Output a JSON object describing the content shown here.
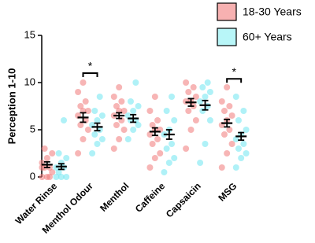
{
  "chart_data": {
    "type": "dotplot",
    "y_label": "Perception 1-10",
    "categories": [
      "Water Rinse",
      "Menthol Odour",
      "Menthol",
      "Caffeine",
      "Capsaicin",
      "MSG"
    ],
    "ylim": [
      0,
      15
    ],
    "yticks": [
      0,
      5,
      10,
      15
    ],
    "series": [
      {
        "name": "18-30 Years",
        "color": "#f07878",
        "legend_color": "#f7b1b1",
        "values": [
          1.3,
          6.3,
          6.5,
          4.8,
          7.9,
          5.7
        ],
        "errors": [
          0.3,
          0.5,
          0.3,
          0.4,
          0.4,
          0.4
        ],
        "points": [
          [
            0,
            0,
            0.5,
            1,
            1,
            1.5,
            2,
            2.5,
            3,
            0,
            1
          ],
          [
            2.5,
            4,
            5,
            5.5,
            6,
            6.5,
            7,
            7,
            7.5,
            8,
            9,
            10
          ],
          [
            3,
            4,
            5,
            5.5,
            6,
            6.5,
            7,
            7,
            7.5,
            8,
            8.5,
            9.5
          ],
          [
            1,
            2,
            2.5,
            3.5,
            4,
            4.5,
            5,
            5,
            5.5,
            6,
            7,
            8.5
          ],
          [
            3,
            5,
            6,
            7,
            7.5,
            8,
            8,
            8.5,
            9,
            9.5,
            10
          ],
          [
            1,
            2.5,
            3.5,
            4.5,
            5,
            5.5,
            6,
            6.5,
            7,
            7.5,
            8,
            9.5
          ]
        ]
      },
      {
        "name": "60+ Years",
        "color": "#6ee6f0",
        "legend_color": "#b8f6f8",
        "values": [
          1.1,
          5.3,
          6.2,
          4.5,
          7.6,
          4.3
        ],
        "errors": [
          0.3,
          0.4,
          0.4,
          0.5,
          0.5,
          0.4
        ],
        "points": [
          [
            0,
            0,
            0,
            0.5,
            1,
            1,
            1.5,
            2,
            2.5,
            6
          ],
          [
            2.5,
            3.5,
            4,
            4.5,
            5,
            5.5,
            6,
            6.5,
            7,
            8.5
          ],
          [
            4,
            5,
            5.5,
            6,
            6,
            6.5,
            7,
            7.5,
            8,
            10
          ],
          [
            0.5,
            1.5,
            2,
            3,
            3.5,
            4.5,
            5,
            6,
            7,
            8.5
          ],
          [
            1.5,
            3.5,
            6,
            7,
            7.5,
            8,
            8.5,
            9,
            9.5,
            10
          ],
          [
            1,
            2,
            2.5,
            3,
            3.5,
            4,
            4.5,
            5,
            6,
            7,
            8.5
          ]
        ]
      }
    ],
    "significance": [
      {
        "category": 1,
        "y": 11,
        "label": "*"
      },
      {
        "category": 5,
        "y": 10.4,
        "label": "*"
      }
    ]
  }
}
